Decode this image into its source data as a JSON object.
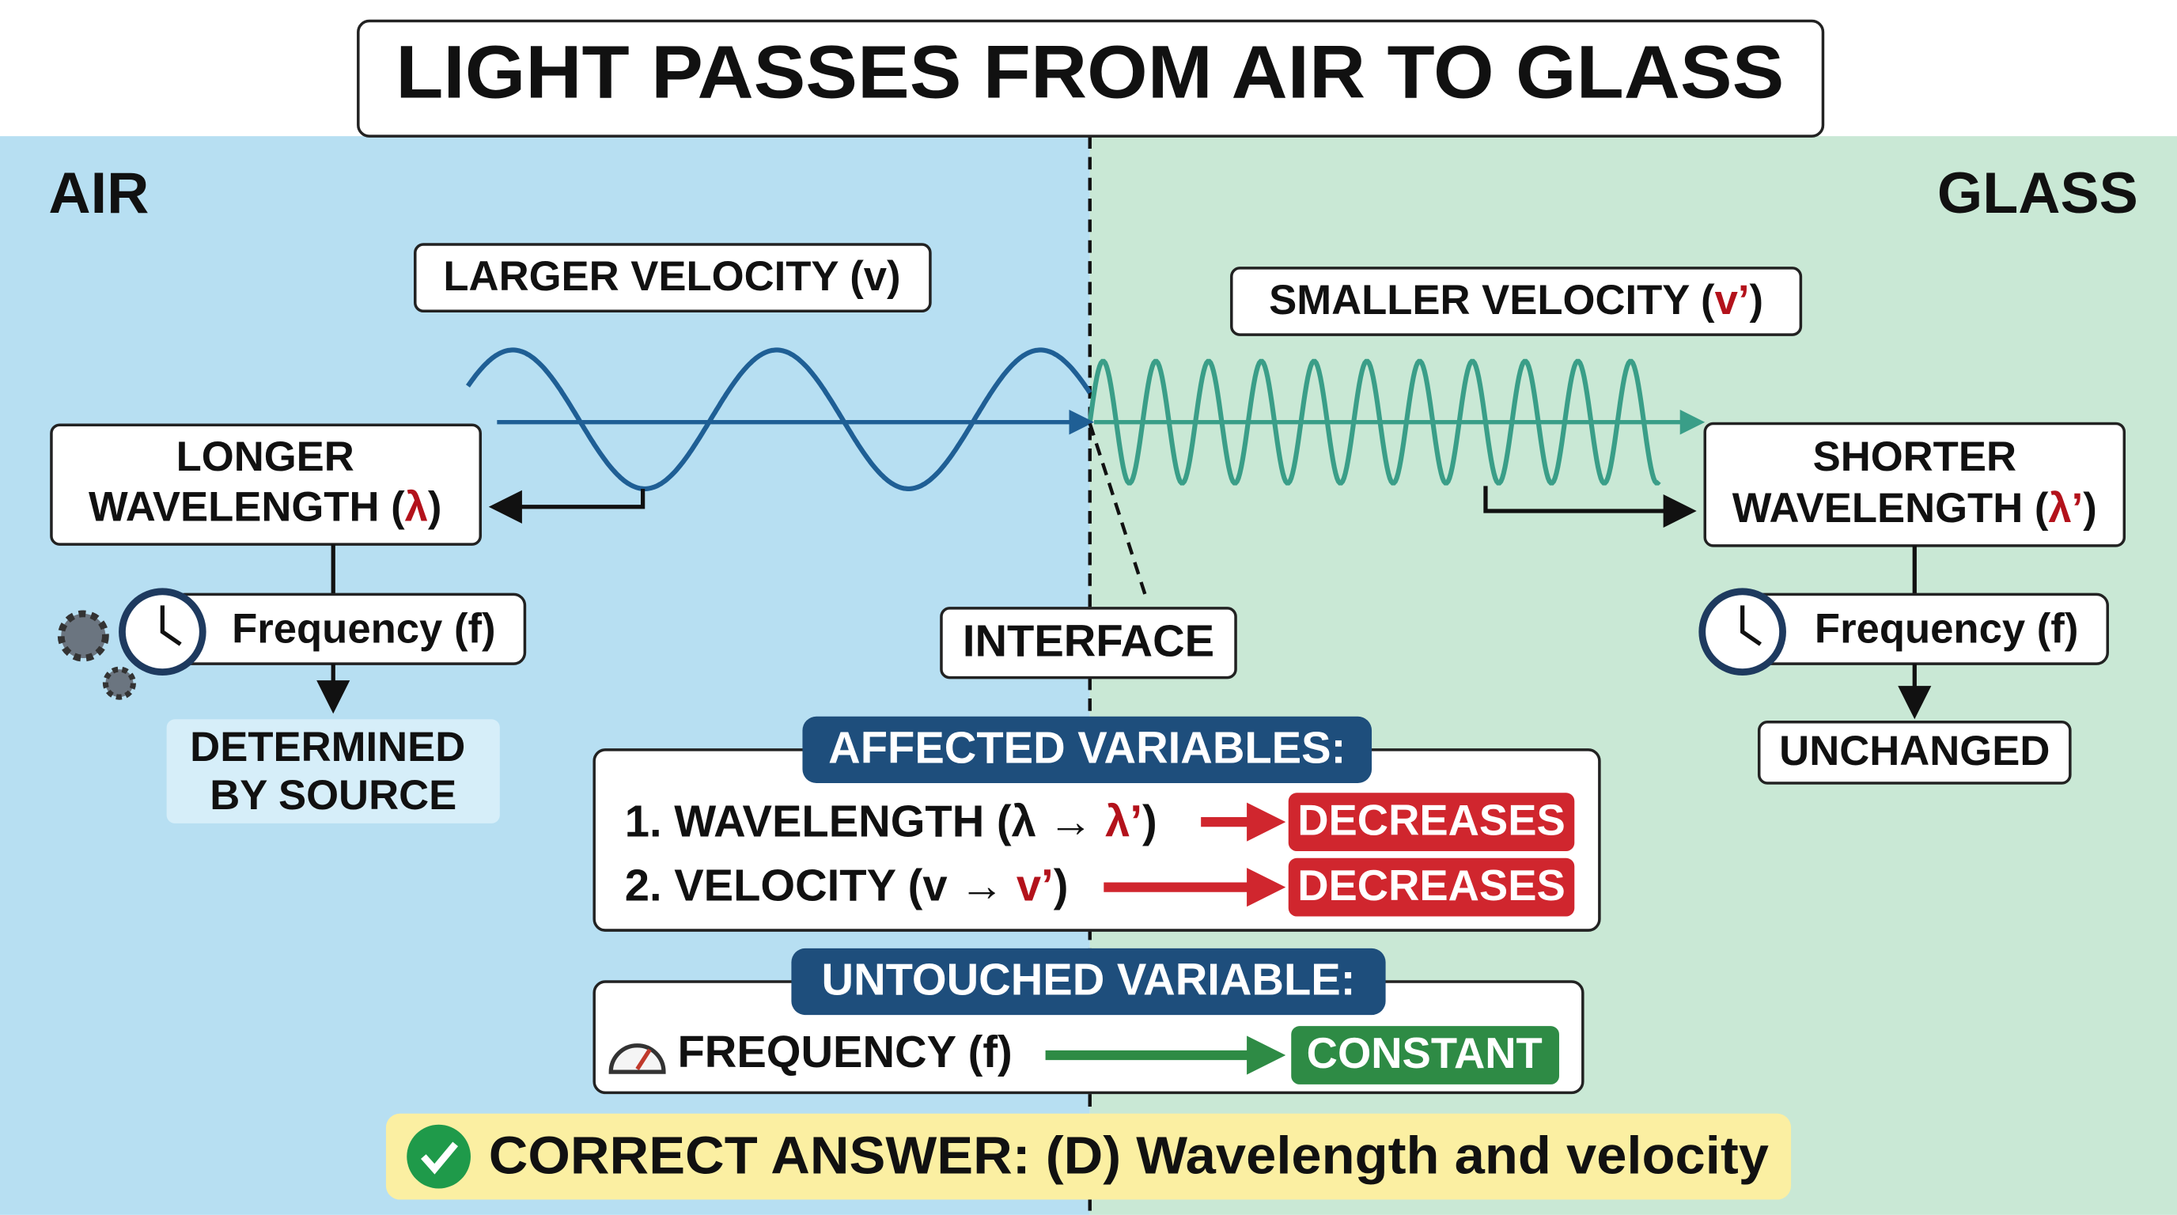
{
  "header": {
    "title": "LIGHT PASSES FROM AIR TO GLASS"
  },
  "regions": {
    "left": "AIR",
    "right": "GLASS"
  },
  "air": {
    "velocity": "LARGER VELOCITY (v)",
    "wavelength": {
      "line1": "LONGER",
      "line2": "WAVELENGTH (",
      "symbol": "λ",
      "close": ")"
    },
    "frequency": "Frequency (f)",
    "note": [
      "DETERMINED",
      "BY SOURCE"
    ]
  },
  "glass": {
    "velocity": {
      "text": "SMALLER VELOCITY (",
      "symbol": "v’",
      "close": ")"
    },
    "wavelength": {
      "line1": "SHORTER",
      "line2": "WAVELENGTH (",
      "symbol": "λ’",
      "close": ")"
    },
    "frequency": "Frequency (f)",
    "note": "UNCHANGED"
  },
  "interface": "INTERFACE",
  "affected": {
    "heading": "AFFECTED VARIABLES:",
    "items": [
      {
        "label": "1. WAVELENGTH (λ → ",
        "symbol": "λ’",
        "close": ")",
        "result": "DECREASES"
      },
      {
        "label": "2. VELOCITY (v → ",
        "symbol": "v’",
        "close": ")",
        "result": "DECREASES"
      }
    ]
  },
  "untouched": {
    "heading": "UNTOUCHED VARIABLE:",
    "items": [
      {
        "label": "FREQUENCY (f)",
        "result": "CONSTANT"
      }
    ]
  },
  "answer": "CORRECT ANSWER: (D) Wavelength and velocity"
}
